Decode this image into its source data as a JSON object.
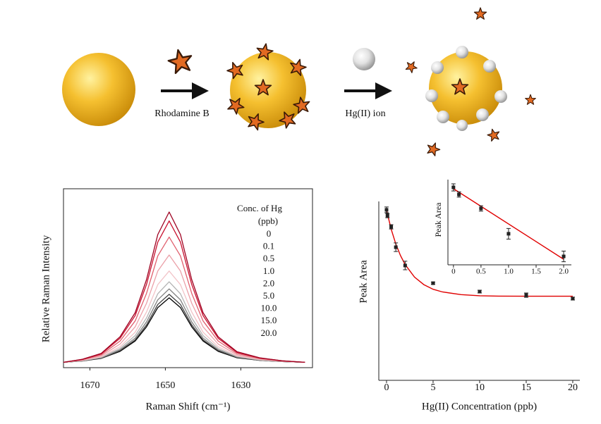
{
  "schematic": {
    "labels": [
      "Rhodamine B",
      "Hg(II) ion"
    ]
  },
  "chart_data": [
    {
      "type": "line",
      "xlabel": "Raman Shift (cm⁻¹)",
      "ylabel": "Relative Raman Intensity",
      "legend_title": "Conc. of Hg",
      "legend_subtitle": "(ppb)",
      "xlim": [
        1677,
        1611
      ],
      "ylim": [
        0,
        100
      ],
      "xticks": [
        1670,
        1650,
        1630
      ],
      "x": [
        1677,
        1672,
        1667,
        1662,
        1658,
        1655,
        1652,
        1649,
        1646,
        1643,
        1640,
        1636,
        1631,
        1625,
        1619,
        1613
      ],
      "series": [
        {
          "name": "0",
          "color": "#9e0020",
          "values": [
            3,
            4.7,
            8,
            17.3,
            30.7,
            49.2,
            74.4,
            87,
            74.4,
            49.2,
            30.7,
            17.3,
            8.9,
            5.5,
            3.8,
            3
          ]
        },
        {
          "name": "0.1",
          "color": "#c8102e",
          "values": [
            3,
            4.6,
            7.7,
            16.4,
            29.1,
            46.5,
            70.2,
            82,
            70.2,
            46.5,
            29.1,
            16.4,
            8.5,
            5.4,
            3.8,
            3
          ]
        },
        {
          "name": "0.5",
          "color": "#e0606e",
          "values": [
            3,
            4.4,
            7.2,
            14.9,
            26.1,
            41.5,
            62.5,
            73,
            62.5,
            41.5,
            26.1,
            14.9,
            7.9,
            5.1,
            3.7,
            3
          ]
        },
        {
          "name": "1.0",
          "color": "#eba0a8",
          "values": [
            3,
            4.2,
            6.6,
            13.2,
            22.8,
            36,
            54,
            63,
            54,
            36,
            22.8,
            13.2,
            7.2,
            4.8,
            3.6,
            3
          ]
        },
        {
          "name": "2.0",
          "color": "#f2c4c8",
          "values": [
            3,
            4,
            6.1,
            11.7,
            19.8,
            31.1,
            46.4,
            54,
            46.4,
            31.1,
            19.8,
            11.7,
            6.6,
            4.5,
            3.5,
            3
          ]
        },
        {
          "name": "5.0",
          "color": "#b4b4b4",
          "values": [
            3,
            3.9,
            5.7,
            10.7,
            17.9,
            27.8,
            41.3,
            48,
            41.3,
            27.8,
            17.9,
            10.7,
            6.2,
            4.4,
            3.5,
            3
          ]
        },
        {
          "name": "10.0",
          "color": "#808080",
          "values": [
            3,
            3.8,
            5.5,
            10,
            16.5,
            25.6,
            37.9,
            44,
            37.9,
            25.6,
            16.5,
            10,
            5.9,
            4.2,
            3.4,
            3
          ]
        },
        {
          "name": "15.0",
          "color": "#404040",
          "values": [
            3,
            3.8,
            5.3,
            9.5,
            15.5,
            23.9,
            35.3,
            41,
            35.3,
            23.9,
            15.5,
            9.5,
            5.7,
            4.1,
            3.4,
            3
          ]
        },
        {
          "name": "20.0",
          "color": "#000000",
          "values": [
            3,
            3.7,
            5.2,
            9.1,
            14.9,
            22.8,
            33.6,
            39,
            33.6,
            22.8,
            14.9,
            9.1,
            5.5,
            4.1,
            3.4,
            3
          ]
        }
      ]
    },
    {
      "type": "scatter",
      "xlabel": "Hg(II) Concentration (ppb)",
      "ylabel": "Peak Area",
      "xlim": [
        -0.83,
        20.76
      ],
      "ylim": [
        0,
        100
      ],
      "xticks": [
        0,
        5,
        10,
        15,
        20
      ],
      "color": "#222222",
      "x": [
        0,
        0.1,
        0.5,
        1,
        2,
        5,
        10,
        15,
        20
      ],
      "values": [
        95.3,
        92.1,
        85.8,
        74.4,
        64.2,
        54.3,
        49.6,
        47.6,
        45.7
      ],
      "errors": [
        1.6,
        1.2,
        1.2,
        2.4,
        2.4,
        0.6,
        0.8,
        1.2,
        0.8
      ],
      "fit": {
        "color": "#e00000",
        "x": [
          0,
          0.5,
          1,
          1.5,
          2,
          3,
          4,
          5,
          6,
          8,
          10,
          12,
          15,
          20
        ],
        "values": [
          95,
          84.4,
          76.1,
          69.7,
          64.7,
          57.7,
          53.5,
          50.9,
          49.4,
          47.9,
          47.3,
          47.1,
          47,
          47
        ]
      }
    },
    {
      "type": "scatter",
      "ylabel": "Peak Area",
      "xlim": [
        -0.1,
        2.14
      ],
      "ylim": [
        60.4,
        98.8
      ],
      "xticks": [
        0,
        0.5,
        {
          "value": 1,
          "label": "1.0"
        },
        1.5,
        {
          "value": 2,
          "label": "2.0"
        }
      ],
      "color": "#222222",
      "x": [
        0,
        0.1,
        0.5,
        1,
        2
      ],
      "values": [
        95.3,
        92.1,
        85.8,
        74.4,
        64.2
      ],
      "errors": [
        1.6,
        1.2,
        1.2,
        2.4,
        2.4
      ],
      "fit": {
        "color": "#e00000",
        "x": [
          0,
          2
        ],
        "values": [
          94.7,
          62.9
        ]
      }
    }
  ]
}
